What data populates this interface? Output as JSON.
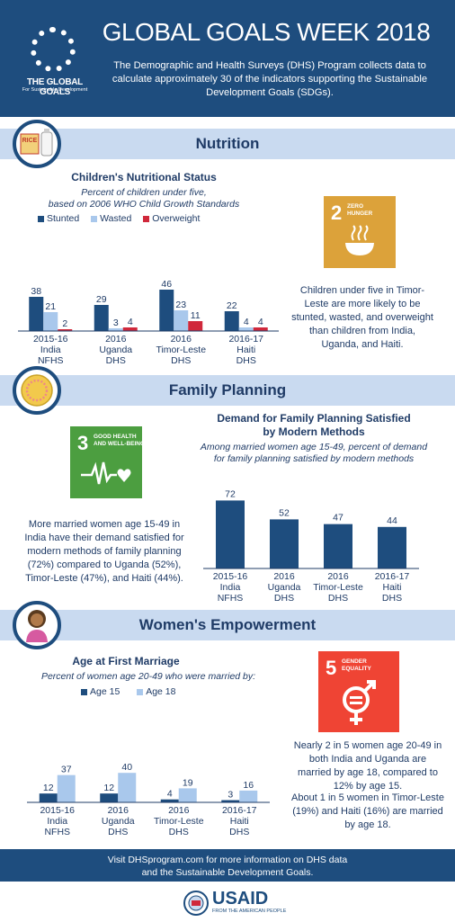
{
  "header": {
    "logo_text": "THE GLOBAL GOALS",
    "logo_sub": "For Sustainable Development",
    "title": "GLOBAL GOALS WEEK 2018",
    "description": "The Demographic and Health Surveys (DHS) Program collects data to calculate approximately 30 of the indicators supporting the Sustainable Development Goals (SDGs)."
  },
  "colors": {
    "navy": "#1e4d7e",
    "light_blue": "#a9c8ec",
    "red": "#d0283b",
    "bar_bg": "#c9daf0",
    "sdg2": "#dca23a",
    "sdg3": "#4c9e40",
    "sdg5": "#ef4434"
  },
  "nutrition": {
    "section_title": "Nutrition",
    "icon": "rice-and-oil-icon",
    "icon_label": "RICE",
    "chart_title": "Children's Nutritional Status",
    "chart_sub1": "Percent of children under five,",
    "chart_sub2": "based on 2006 WHO Child Growth Standards",
    "legend": [
      "Stunted",
      "Wasted",
      "Overweight"
    ],
    "sdg": {
      "number": "2",
      "name_line1": "ZERO",
      "name_line2": "HUNGER",
      "icon": "food-bowl-icon"
    },
    "note": "Children under five in Timor-Leste are more likely to be stunted, wasted, and overweight than children from India, Uganda, and Haiti."
  },
  "family_planning": {
    "section_title": "Family Planning",
    "icon": "contraceptive-pills-icon",
    "chart_title_line1": "Demand for Family Planning Satisfied",
    "chart_title_line2": "by Modern Methods",
    "chart_sub1": "Among married women age 15-49, percent of demand",
    "chart_sub2": "for family planning satisfied by modern methods",
    "sdg": {
      "number": "3",
      "name_line1": "GOOD HEALTH",
      "name_line2": "AND WELL-BEING",
      "icon": "heartbeat-icon"
    },
    "note": "More married women age 15-49 in India have their demand satisfied for modern methods of family planning (72%) compared to Uganda (52%), Timor-Leste (47%), and Haiti (44%)."
  },
  "empowerment": {
    "section_title": "Women's Empowerment",
    "icon": "woman-avatar-icon",
    "chart_title": "Age at First Marriage",
    "chart_sub": "Percent of women age 20-49 who were married by:",
    "legend": [
      "Age 15",
      "Age 18"
    ],
    "sdg": {
      "number": "5",
      "name_line1": "GENDER",
      "name_line2": "EQUALITY",
      "icon": "gender-symbol-icon"
    },
    "note1": "Nearly 2 in 5 women age 20-49 in both India and Uganda are married by age 18, compared to 12% by age 15.",
    "note2": "About 1 in 5 women in Timor-Leste (19%) and Haiti (16%) are married by age 18."
  },
  "footer": {
    "line1": "Visit DHSprogram.com for more information on DHS data",
    "line2": "and the Sustainable Development Goals.",
    "usaid": "USAID",
    "usaid_sub": "FROM THE AMERICAN PEOPLE"
  },
  "chart_data": [
    {
      "type": "bar",
      "title": "Children's Nutritional Status",
      "categories": [
        [
          "2015-16",
          "India",
          "NFHS"
        ],
        [
          "2016",
          "Uganda",
          "DHS"
        ],
        [
          "2016",
          "Timor-Leste",
          "DHS"
        ],
        [
          "2016-17",
          "Haiti",
          "DHS"
        ]
      ],
      "series": [
        {
          "name": "Stunted",
          "values": [
            38,
            29,
            46,
            22
          ]
        },
        {
          "name": "Wasted",
          "values": [
            21,
            3,
            23,
            4
          ]
        },
        {
          "name": "Overweight",
          "values": [
            2,
            4,
            11,
            4
          ]
        }
      ]
    },
    {
      "type": "bar",
      "title": "Demand for Family Planning Satisfied by Modern Methods",
      "categories": [
        [
          "2015-16",
          "India",
          "NFHS"
        ],
        [
          "2016",
          "Uganda",
          "DHS"
        ],
        [
          "2016",
          "Timor-Leste",
          "DHS"
        ],
        [
          "2016-17",
          "Haiti",
          "DHS"
        ]
      ],
      "values": [
        72,
        52,
        47,
        44
      ]
    },
    {
      "type": "bar",
      "title": "Age at First Marriage",
      "categories": [
        [
          "2015-16",
          "India",
          "NFHS"
        ],
        [
          "2016",
          "Uganda",
          "DHS"
        ],
        [
          "2016",
          "Timor-Leste",
          "DHS"
        ],
        [
          "2016-17",
          "Haiti",
          "DHS"
        ]
      ],
      "series": [
        {
          "name": "Age 15",
          "values": [
            12,
            12,
            4,
            3
          ]
        },
        {
          "name": "Age 18",
          "values": [
            37,
            40,
            19,
            16
          ]
        }
      ]
    }
  ]
}
